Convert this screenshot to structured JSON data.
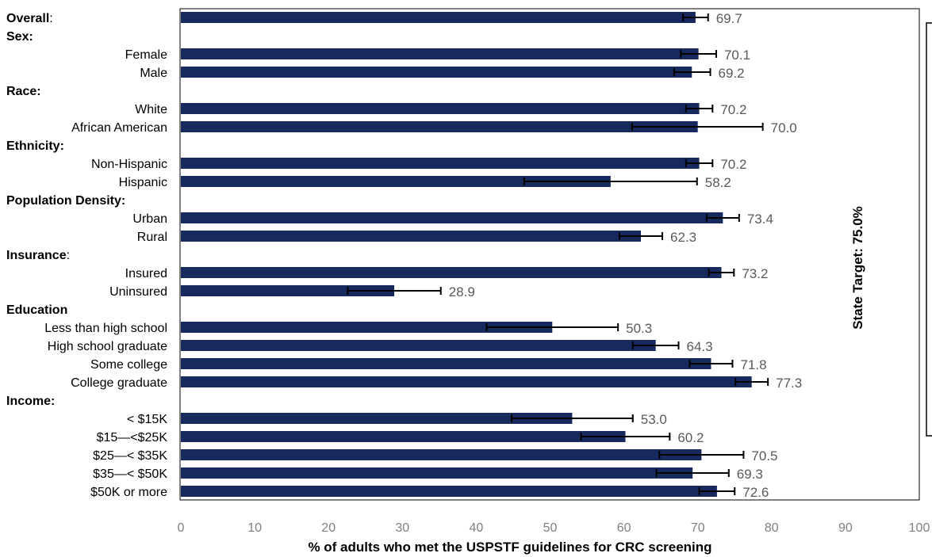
{
  "chart_data": {
    "type": "bar",
    "orientation": "horizontal",
    "xlabel": "% of adults who met the USPSTF guidelines for CRC screening",
    "xlim": [
      0,
      100
    ],
    "xticks": [
      "0",
      "10",
      "20",
      "30",
      "40",
      "50",
      "60",
      "70",
      "80",
      "90",
      "100"
    ],
    "target_label": "State Target: 75.0%",
    "target_value": 75.0,
    "bar_color": "#172a5e",
    "groups": [
      {
        "heading": "Overall",
        "suffix": ":",
        "heading_bold_suffix": false,
        "rows": [
          {
            "label": "",
            "value": 69.7,
            "label_text": "69.7",
            "ci": [
              68.0,
              71.4
            ]
          }
        ]
      },
      {
        "heading": "Sex:",
        "suffix": "",
        "rows": [
          {
            "label": "Female",
            "value": 70.1,
            "label_text": "70.1",
            "ci": [
              67.7,
              72.5
            ]
          },
          {
            "label": "Male",
            "value": 69.2,
            "label_text": "69.2",
            "ci": [
              66.8,
              71.7
            ]
          }
        ]
      },
      {
        "heading": "Race:",
        "suffix": "",
        "rows": [
          {
            "label": "White",
            "value": 70.2,
            "label_text": "70.2",
            "ci": [
              68.4,
              72.0
            ]
          },
          {
            "label": "African American",
            "value": 70.0,
            "label_text": "70.0",
            "ci": [
              61.1,
              78.8
            ]
          }
        ]
      },
      {
        "heading": "Ethnicity:",
        "suffix": "",
        "rows": [
          {
            "label": "Non-Hispanic",
            "value": 70.2,
            "label_text": "70.2",
            "ci": [
              68.4,
              72.0
            ]
          },
          {
            "label": "Hispanic",
            "value": 58.2,
            "label_text": "58.2",
            "ci": [
              46.5,
              69.9
            ]
          }
        ]
      },
      {
        "heading": "Population Density:",
        "suffix": "",
        "rows": [
          {
            "label": "Urban",
            "value": 73.4,
            "label_text": "73.4",
            "ci": [
              71.2,
              75.6
            ]
          },
          {
            "label": "Rural",
            "value": 62.3,
            "label_text": "62.3",
            "ci": [
              59.4,
              65.2
            ]
          }
        ]
      },
      {
        "heading": "Insurance",
        "suffix": ":",
        "rows": [
          {
            "label": "Insured",
            "value": 73.2,
            "label_text": "73.2",
            "ci": [
              71.5,
              74.9
            ]
          },
          {
            "label": "Uninsured",
            "value": 28.9,
            "label_text": "28.9",
            "ci": [
              22.6,
              35.2
            ]
          }
        ]
      },
      {
        "heading": "Education",
        "suffix": "",
        "rows": [
          {
            "label": "Less than high school",
            "value": 50.3,
            "label_text": "50.3",
            "ci": [
              41.4,
              59.2
            ]
          },
          {
            "label": "High school graduate",
            "value": 64.3,
            "label_text": "64.3",
            "ci": [
              61.2,
              67.4
            ]
          },
          {
            "label": "Some college",
            "value": 71.8,
            "label_text": "71.8",
            "ci": [
              68.9,
              74.7
            ]
          },
          {
            "label": "College graduate",
            "value": 77.3,
            "label_text": "77.3",
            "ci": [
              75.1,
              79.5
            ]
          }
        ]
      },
      {
        "heading": "Income:",
        "suffix": "",
        "rows": [
          {
            "label": "< $15K",
            "value": 53.0,
            "label_text": "53.0",
            "ci": [
              44.8,
              61.2
            ]
          },
          {
            "label": "$15—<$25K",
            "value": 60.2,
            "label_text": "60.2",
            "ci": [
              54.2,
              66.2
            ]
          },
          {
            "label": "$25—< $35K",
            "value": 70.5,
            "label_text": "70.5",
            "ci": [
              64.8,
              76.2
            ]
          },
          {
            "label": "$35—< $50K",
            "value": 69.3,
            "label_text": "69.3",
            "ci": [
              64.4,
              74.2
            ]
          },
          {
            "label": "$50K or more",
            "value": 72.6,
            "label_text": "72.6",
            "ci": [
              70.2,
              75.0
            ]
          }
        ]
      }
    ]
  }
}
